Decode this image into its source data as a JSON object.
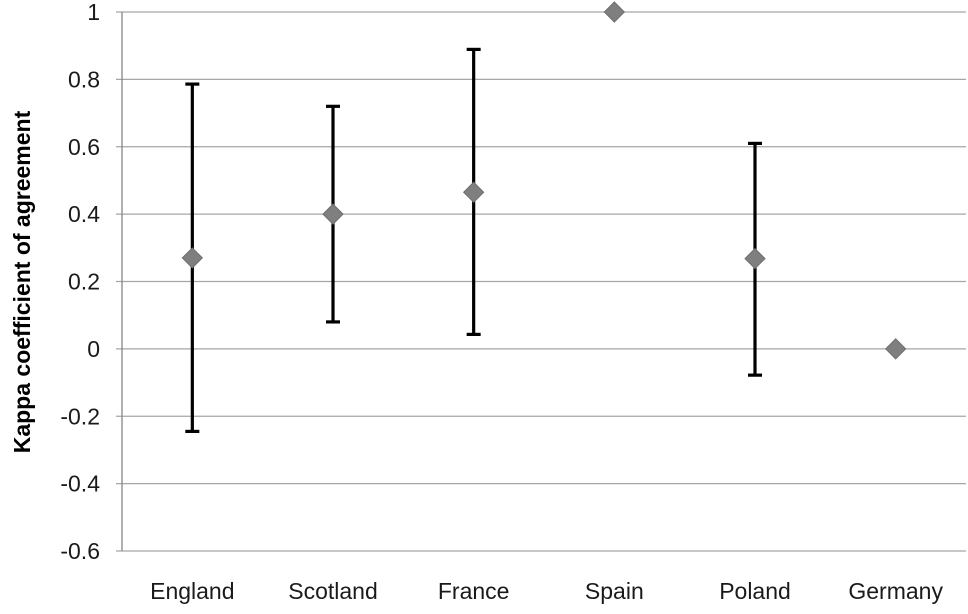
{
  "chart_data": {
    "type": "scatter",
    "title": "",
    "xlabel": "",
    "ylabel": "Kappa coefficient of agreement",
    "categories": [
      "England",
      "Scotland",
      "France",
      "Spain",
      "Poland",
      "Germany"
    ],
    "values": [
      0.27,
      0.4,
      0.465,
      1.0,
      0.268,
      0.0
    ],
    "error_low": [
      -0.245,
      0.08,
      0.043,
      null,
      -0.078,
      null
    ],
    "error_high": [
      0.786,
      0.72,
      0.889,
      null,
      0.61,
      null
    ],
    "ylim": [
      -0.6,
      1.0
    ],
    "yticks": [
      "-0.6",
      "-0.4",
      "-0.2",
      "0",
      "0.2",
      "0.4",
      "0.6",
      "0.8",
      "1"
    ],
    "grid": true,
    "legend": "none",
    "colors": {
      "marker": "#7f7f7f",
      "error_bar": "#000000",
      "grid": "#a6a6a6",
      "axis": "#868686"
    }
  }
}
